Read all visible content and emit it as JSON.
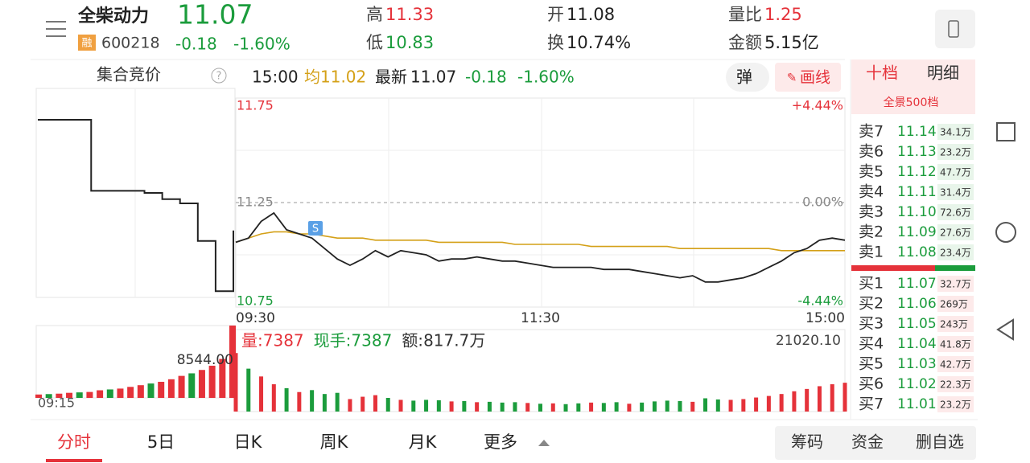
{
  "header": {
    "name": "全柴动力",
    "price": "11.07",
    "margin_tag": "融",
    "code": "600218",
    "change": "-0.18",
    "change_pct": "-1.60%",
    "stats": [
      {
        "label": "高",
        "value": "11.33"
      },
      {
        "label": "低",
        "value": "10.83"
      },
      {
        "label": "开",
        "value": "11.08"
      },
      {
        "label": "换",
        "value": "10.74%"
      },
      {
        "label": "量比",
        "value": "1.25"
      },
      {
        "label": "金额",
        "value": "5.15亿"
      }
    ]
  },
  "toolbar": {
    "auction_label": "集合竞价",
    "help": "?",
    "time": "15:00",
    "avg_label": "均",
    "avg": "11.02",
    "latest_label": "最新",
    "latest": "11.07",
    "change": "-0.18",
    "change_pct": "-1.60%",
    "bullet_button": "弹",
    "draw_button": "画线",
    "signal": "S"
  },
  "orderbook": {
    "tabs": [
      "十档",
      "明细"
    ],
    "panorama": "全景500档",
    "asks": [
      {
        "label": "卖7",
        "price": "11.14",
        "volume": "34.1万"
      },
      {
        "label": "卖6",
        "price": "11.13",
        "volume": "23.2万"
      },
      {
        "label": "卖5",
        "price": "11.12",
        "volume": "47.7万"
      },
      {
        "label": "卖4",
        "price": "11.11",
        "volume": "31.4万"
      },
      {
        "label": "卖3",
        "price": "11.10",
        "volume": "72.6万"
      },
      {
        "label": "卖2",
        "price": "11.09",
        "volume": "27.6万"
      },
      {
        "label": "卖1",
        "price": "11.08",
        "volume": "23.4万"
      }
    ],
    "bids": [
      {
        "label": "买1",
        "price": "11.07",
        "volume": "32.7万"
      },
      {
        "label": "买2",
        "price": "11.06",
        "volume": "269万"
      },
      {
        "label": "买3",
        "price": "11.05",
        "volume": "243万"
      },
      {
        "label": "买4",
        "price": "11.04",
        "volume": "41.8万"
      },
      {
        "label": "买5",
        "price": "11.03",
        "volume": "42.7万"
      },
      {
        "label": "买6",
        "price": "11.02",
        "volume": "22.3万"
      },
      {
        "label": "买7",
        "price": "11.01",
        "volume": "23.2万"
      }
    ]
  },
  "bottom": {
    "tabs": [
      "分时",
      "5日",
      "日K",
      "周K",
      "月K",
      "更多"
    ],
    "actions": [
      "筹码",
      "资金",
      "删自选"
    ]
  },
  "chart_data": [
    {
      "type": "line",
      "ylim": [
        10.75,
        11.75
      ],
      "yticks": [
        10.75,
        11.25,
        11.75
      ],
      "right_labels": [
        "-4.44%",
        "0.00%",
        "+4.44%"
      ],
      "categories": [
        "09:30",
        null,
        null,
        null,
        null,
        null,
        null,
        null,
        null,
        null,
        null,
        null,
        null,
        null,
        null,
        null,
        null,
        null,
        null,
        null,
        null,
        null,
        null,
        null,
        "11:30",
        null,
        null,
        null,
        null,
        null,
        null,
        null,
        null,
        null,
        null,
        null,
        null,
        null,
        null,
        null,
        null,
        null,
        null,
        null,
        null,
        null,
        null,
        null,
        "15:00"
      ],
      "series": [
        {
          "color": "#222222",
          "values": [
            11.06,
            11.08,
            11.16,
            11.2,
            11.12,
            11.1,
            11.08,
            11.03,
            10.98,
            10.95,
            10.98,
            11.02,
            10.99,
            11.02,
            11.01,
            11.0,
            10.97,
            10.98,
            10.98,
            10.99,
            10.98,
            10.97,
            10.97,
            10.96,
            10.95,
            10.94,
            10.94,
            10.94,
            10.94,
            10.93,
            10.93,
            10.93,
            10.92,
            10.91,
            10.9,
            10.89,
            10.9,
            10.87,
            10.87,
            10.88,
            10.89,
            10.91,
            10.94,
            10.97,
            11.01,
            11.03,
            11.07,
            11.08,
            11.07
          ]
        },
        {
          "color": "#d4a017",
          "values": [
            11.06,
            11.08,
            11.1,
            11.11,
            11.11,
            11.1,
            11.1,
            11.09,
            11.08,
            11.08,
            11.08,
            11.07,
            11.07,
            11.07,
            11.07,
            11.07,
            11.06,
            11.06,
            11.06,
            11.06,
            11.06,
            11.06,
            11.05,
            11.05,
            11.05,
            11.05,
            11.05,
            11.05,
            11.04,
            11.04,
            11.04,
            11.04,
            11.04,
            11.04,
            11.04,
            11.03,
            11.03,
            11.03,
            11.03,
            11.03,
            11.03,
            11.03,
            11.03,
            11.02,
            11.02,
            11.02,
            11.02,
            11.02,
            11.02
          ]
        }
      ]
    },
    {
      "type": "bar",
      "ylim": [
        0,
        21020.1
      ],
      "yticks": [
        {
          "value": 21020.1,
          "label": "21020.10"
        }
      ],
      "info": [
        {
          "label": "量:",
          "value": "7387"
        },
        {
          "label": "现手:",
          "value": "7387"
        },
        {
          "label": "额:",
          "value": "817.7万"
        }
      ],
      "series": [
        {
          "color": "#e5323a",
          "values": [
            15000,
            null,
            9000,
            7000,
            null,
            5000,
            null,
            null,
            null,
            3200,
            3800,
            4200,
            null,
            3000,
            null,
            null,
            null,
            2600,
            null,
            2400,
            null,
            null,
            null,
            2200,
            null,
            2100,
            null,
            null,
            2300,
            null,
            null,
            2000,
            null,
            null,
            null,
            null,
            2500,
            null,
            null,
            3000,
            3200,
            3600,
            4000,
            4500,
            5200,
            5800,
            6500,
            7000,
            7387
          ]
        },
        {
          "color": "#1b9c3c",
          "values": [
            null,
            11000,
            null,
            null,
            6000,
            null,
            5500,
            4500,
            4800,
            null,
            null,
            null,
            3500,
            null,
            2800,
            3000,
            2900,
            null,
            2700,
            null,
            2500,
            2300,
            2400,
            null,
            2000,
            null,
            1900,
            2100,
            null,
            2200,
            2400,
            null,
            2300,
            2600,
            2800,
            2700,
            null,
            3400,
            3100,
            null,
            null,
            null,
            null,
            null,
            null,
            null,
            null,
            null,
            null
          ]
        }
      ]
    },
    {
      "type": "line",
      "ylim": [
        10.75,
        11.75
      ],
      "series": [
        {
          "color": "#222222",
          "values": [
            11.6,
            11.6,
            11.6,
            11.26,
            11.26,
            11.26,
            11.25,
            11.22,
            11.2,
            11.02,
            10.78,
            11.07
          ]
        }
      ]
    },
    {
      "type": "bar",
      "ylim": [
        0,
        8544
      ],
      "yticks": [
        {
          "value": 8544,
          "label": "8544.00"
        }
      ],
      "xlabel": "09:15",
      "series": [
        {
          "color": "#e5323a",
          "values": [
            400,
            null,
            500,
            600,
            null,
            700,
            900,
            null,
            1100,
            1300,
            1500,
            null,
            1900,
            2200,
            2600,
            null,
            3300,
            3800,
            4600,
            8544
          ]
        },
        {
          "color": "#1b9c3c",
          "values": [
            null,
            450,
            null,
            null,
            650,
            null,
            null,
            1000,
            null,
            null,
            null,
            1700,
            null,
            null,
            null,
            2900,
            null,
            null,
            null,
            null
          ]
        }
      ]
    }
  ]
}
